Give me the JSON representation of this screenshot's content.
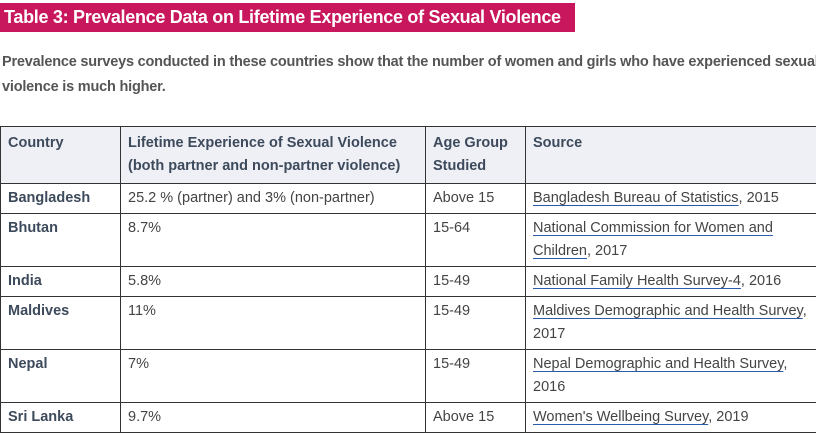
{
  "title": "Table 3: Prevalence Data on Lifetime Experience of Sexual Violence",
  "intro": "Prevalence surveys conducted in these countries show that the number of women and girls who have experienced sexual violence is much higher.",
  "table": {
    "headers": [
      "Country",
      "Lifetime Experience of Sexual Violence (both partner and non-partner violence)",
      "Age Group Studied",
      "Source"
    ],
    "rows": [
      {
        "country": "Bangladesh",
        "prevalence": "25.2 % (partner) and 3% (non-partner)",
        "age": "Above 15",
        "source": "Bangladesh Bureau of Statistics",
        "year": ", 2015"
      },
      {
        "country": "Bhutan",
        "prevalence": "8.7%",
        "age": "15-64",
        "source": "National Commission for Women and Children",
        "year": ", 2017"
      },
      {
        "country": "India",
        "prevalence": "5.8%",
        "age": "15-49",
        "source": "National Family Health Survey-4",
        "year": ", 2016"
      },
      {
        "country": "Maldives",
        "prevalence": "11%",
        "age": "15-49",
        "source": "Maldives Demographic and Health Survey",
        "year": ", 2017"
      },
      {
        "country": "Nepal",
        "prevalence": "7%",
        "age": "15-49",
        "source": "Nepal Demographic and Health Survey",
        "year": ", 2016"
      },
      {
        "country": "Sri Lanka",
        "prevalence": "9.7%",
        "age": "Above 15",
        "source": "Women's Wellbeing Survey",
        "year": ", 2019"
      }
    ]
  }
}
